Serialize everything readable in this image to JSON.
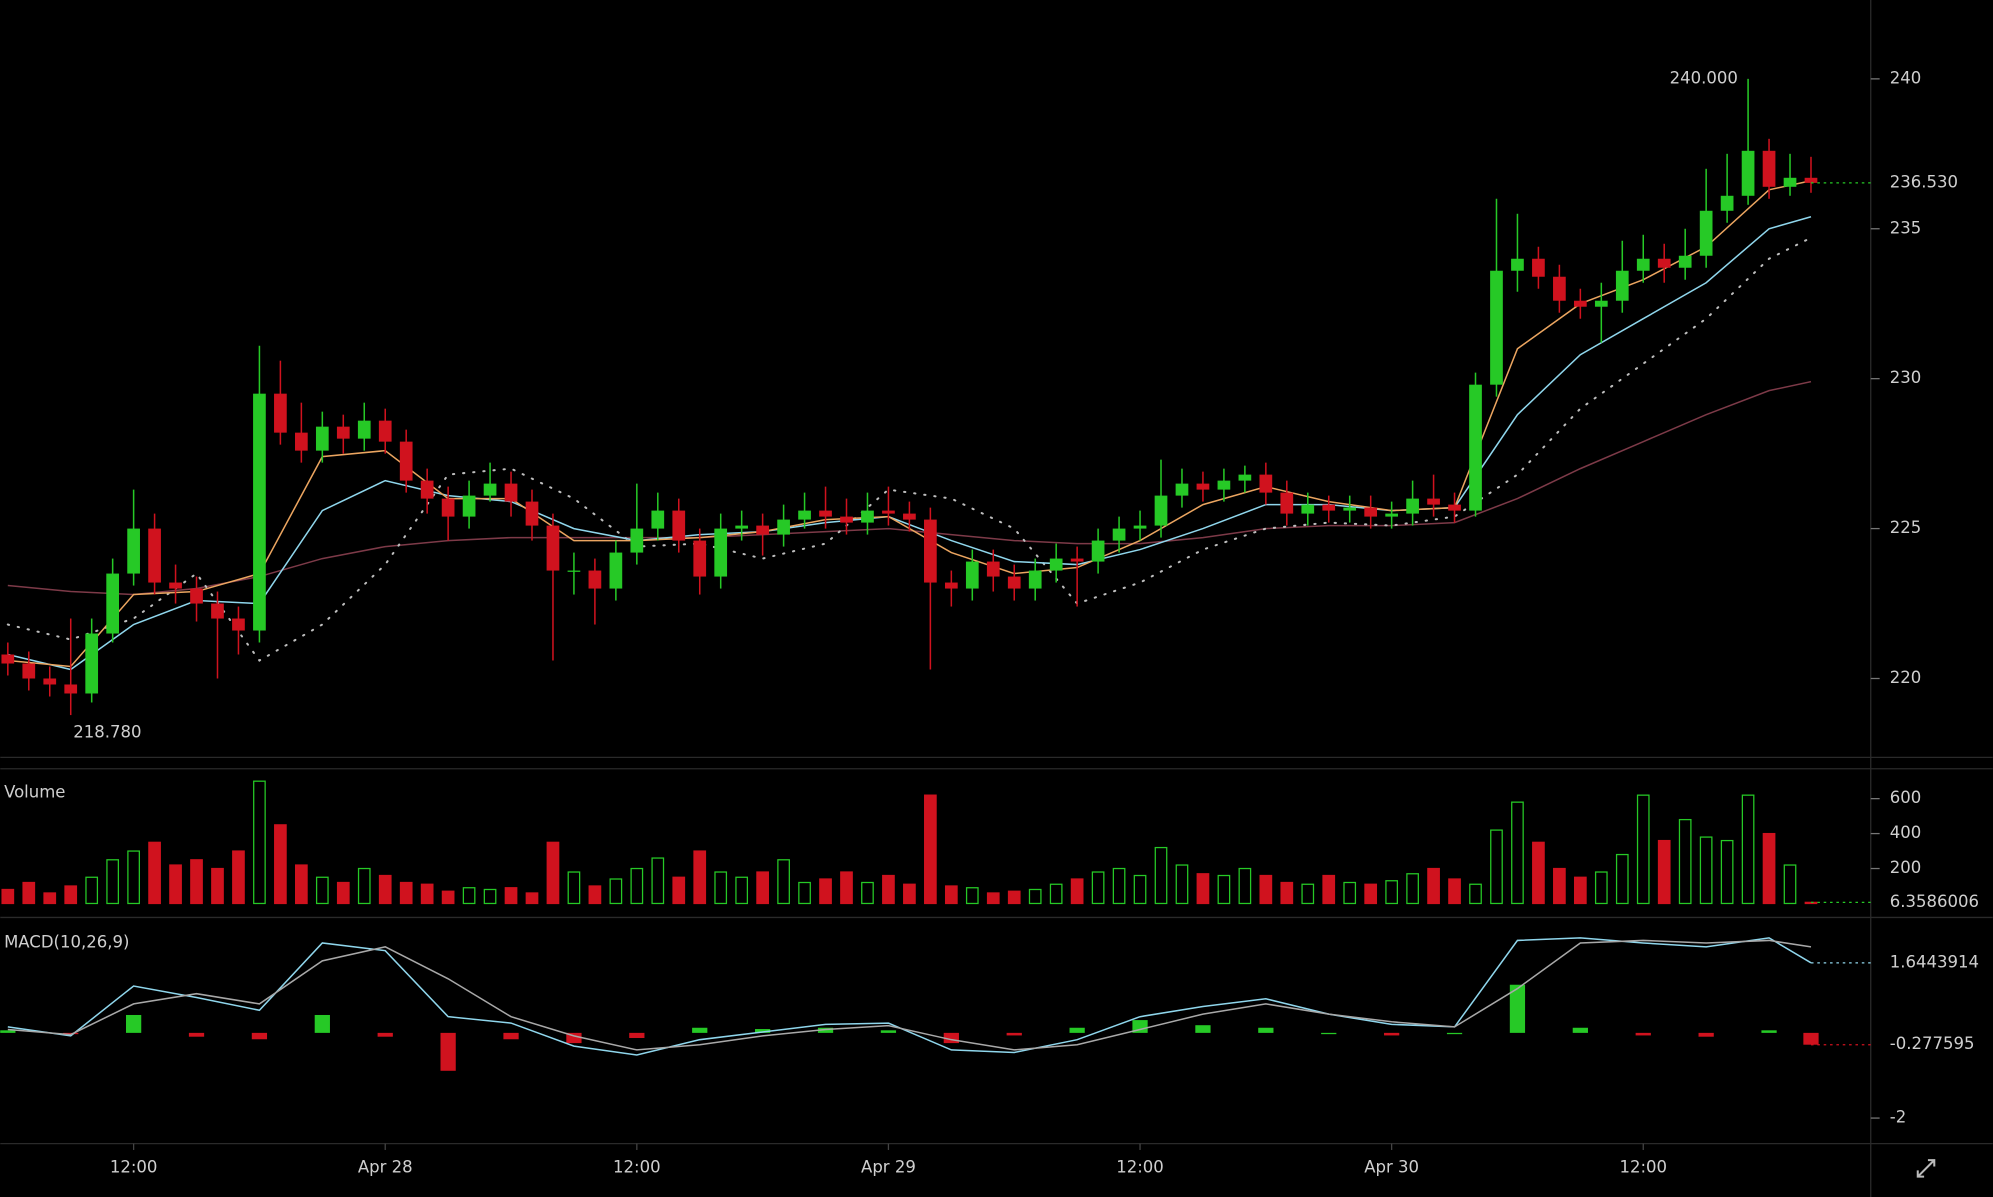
{
  "chart_data": [
    {
      "type": "candlestick",
      "x": [
        -18,
        -17,
        -16,
        -15,
        -14,
        -13,
        -12,
        -11,
        -10,
        -9,
        -8,
        -7,
        -6,
        -5,
        -4,
        -3,
        -2,
        -1,
        0,
        1,
        2,
        3,
        4,
        5,
        6,
        7,
        8,
        9,
        10,
        11,
        12,
        13,
        14,
        15,
        16,
        17,
        18,
        19,
        20,
        21,
        22,
        23,
        24,
        25,
        26,
        27,
        28,
        29,
        30,
        31,
        32,
        33,
        34,
        35,
        36,
        37,
        38,
        39,
        40,
        41,
        42,
        43,
        44,
        45,
        46,
        47,
        48,
        49,
        50,
        51,
        52,
        53,
        54,
        55,
        56,
        57,
        58,
        59,
        60,
        61,
        62,
        63,
        64,
        65,
        66,
        67,
        68
      ],
      "open": [
        220.8,
        220.5,
        220,
        219.8,
        219.5,
        221.5,
        223.5,
        225,
        223.2,
        223,
        222.5,
        222,
        221.6,
        229.5,
        228.2,
        227.6,
        228.4,
        228,
        228.6,
        227.9,
        226.6,
        226,
        225.4,
        226.1,
        226.5,
        225.9,
        225.1,
        223.6,
        223.6,
        223,
        224.2,
        225,
        225.6,
        224.6,
        223.4,
        225,
        225.1,
        224.8,
        225.3,
        225.6,
        225.4,
        225.2,
        225.6,
        225.5,
        225.3,
        223.2,
        223,
        223.9,
        223.4,
        223,
        223.6,
        224,
        223.9,
        224.6,
        225,
        225.1,
        226.1,
        226.5,
        226.3,
        226.6,
        226.8,
        226.2,
        225.5,
        225.8,
        225.6,
        225.7,
        225.4,
        225.5,
        226,
        225.8,
        225.6,
        229.8,
        233.6,
        234,
        233.4,
        232.6,
        232.4,
        232.6,
        233.6,
        234,
        233.7,
        234.1,
        235.6,
        236.1,
        237.6,
        236.4,
        236.7
      ],
      "high": [
        221.2,
        220.9,
        220.4,
        222,
        222,
        224,
        226.3,
        225.5,
        223.8,
        223.4,
        222.9,
        222.4,
        231.1,
        230.6,
        229.2,
        228.9,
        228.8,
        229.2,
        229,
        228.3,
        227,
        226.4,
        226.6,
        227.2,
        226.9,
        226.3,
        225.5,
        224.2,
        224,
        224.6,
        226.5,
        226.2,
        226,
        225,
        225.5,
        225.6,
        225.5,
        225.8,
        226.2,
        226.4,
        226,
        226.2,
        226.4,
        225.9,
        225.7,
        223.6,
        224.3,
        224.3,
        223.8,
        224,
        224.5,
        224.4,
        225,
        225.4,
        225.6,
        227.3,
        227,
        226.9,
        227,
        227.1,
        227.2,
        226.6,
        226.2,
        226.1,
        226.1,
        226.1,
        225.9,
        226.6,
        226.8,
        226.2,
        230.2,
        236,
        235.5,
        234.4,
        233.8,
        233,
        233.2,
        234.6,
        234.8,
        234.5,
        235,
        237,
        237.5,
        240,
        238,
        237.5,
        237.4
      ],
      "low": [
        220.1,
        219.6,
        219.4,
        218.78,
        219.2,
        221.2,
        223.1,
        222.8,
        222.5,
        221.9,
        220,
        220.8,
        221.2,
        227.8,
        227.2,
        227.2,
        227.5,
        227.6,
        227.5,
        226.2,
        225.5,
        224.6,
        225,
        225.9,
        225.4,
        224.6,
        220.6,
        222.8,
        221.8,
        222.6,
        223.8,
        224.6,
        224.2,
        222.8,
        223,
        224.6,
        224.1,
        224.4,
        225,
        225,
        224.8,
        224.8,
        225.1,
        224.9,
        220.3,
        222.4,
        222.6,
        222.9,
        222.6,
        222.6,
        223.2,
        222.4,
        223.5,
        224.2,
        224.6,
        224.7,
        225.7,
        225.9,
        225.9,
        226.2,
        225.8,
        225.1,
        225.1,
        225.2,
        225.2,
        225,
        225,
        225.1,
        225.4,
        225.2,
        225.4,
        229.4,
        232.9,
        233,
        232.2,
        232,
        231.2,
        232.2,
        233.2,
        233.2,
        233.3,
        233.7,
        235.2,
        235.8,
        236,
        236.1,
        236.2
      ],
      "close": [
        220.5,
        220,
        219.8,
        219.5,
        221.5,
        223.5,
        225,
        223.2,
        223,
        222.5,
        222,
        221.6,
        229.5,
        228.2,
        227.6,
        228.4,
        228,
        228.6,
        227.9,
        226.6,
        226,
        225.4,
        226.1,
        226.5,
        225.9,
        225.1,
        223.6,
        223.6,
        223,
        224.2,
        225,
        225.6,
        224.6,
        223.4,
        225,
        225.1,
        224.8,
        225.3,
        225.6,
        225.4,
        225.2,
        225.6,
        225.5,
        225.3,
        223.2,
        223,
        223.9,
        223.4,
        223,
        223.6,
        224,
        223.9,
        224.6,
        225,
        225.1,
        226.1,
        226.5,
        226.3,
        226.6,
        226.8,
        226.2,
        225.5,
        225.8,
        225.6,
        225.7,
        225.4,
        225.5,
        226,
        225.8,
        225.6,
        229.8,
        233.6,
        234,
        233.4,
        232.6,
        232.4,
        232.6,
        233.6,
        234,
        233.7,
        234.1,
        235.6,
        236.1,
        237.6,
        236.4,
        236.7,
        236.53
      ],
      "up_color": "#26c926",
      "down_color": "#d0121e",
      "high_label": "240.000",
      "low_label": "218.780",
      "last_label": "236.530",
      "xlim": [
        -18.36,
        70.85
      ],
      "xticks": [
        {
          "value": -12,
          "label": "12:00"
        },
        {
          "value": 0,
          "label": "Apr 28"
        },
        {
          "value": 12,
          "label": "12:00"
        },
        {
          "value": 24,
          "label": "Apr 29"
        },
        {
          "value": 36,
          "label": "12:00"
        },
        {
          "value": 48,
          "label": "Apr 30"
        },
        {
          "value": 60,
          "label": "12:00"
        }
      ],
      "ylim": [
        217.54,
        242.63
      ],
      "yticks": [
        220,
        225,
        230,
        235,
        240
      ],
      "lines_x": [
        -18,
        -15,
        -12,
        -9,
        -6,
        -3,
        0,
        3,
        6,
        9,
        12,
        15,
        18,
        21,
        24,
        27,
        30,
        33,
        36,
        39,
        42,
        45,
        48,
        51,
        54,
        57,
        60,
        63,
        66,
        68
      ],
      "lines": [
        {
          "color": "#7d3a48",
          "style": "solid",
          "values": [
            223.1,
            222.9,
            222.8,
            223,
            223.4,
            224,
            224.4,
            224.6,
            224.7,
            224.7,
            224.7,
            224.7,
            224.8,
            224.9,
            225,
            224.8,
            224.6,
            224.5,
            224.5,
            224.7,
            225,
            225.1,
            225.1,
            225.2,
            226,
            227,
            227.9,
            228.8,
            229.6,
            229.9
          ]
        },
        {
          "color": "#bdbdbd",
          "style": "dotted",
          "values": [
            221.8,
            221.3,
            222,
            223.5,
            220.6,
            221.8,
            223.8,
            226.8,
            227,
            226,
            224.4,
            224.5,
            224,
            224.5,
            226.3,
            226,
            225,
            222.5,
            223.2,
            224.3,
            225,
            225.2,
            225.1,
            225.4,
            226.8,
            229,
            230.5,
            232,
            234,
            234.7
          ]
        },
        {
          "color": "#8fd6ec",
          "style": "solid",
          "values": [
            220.8,
            220.3,
            221.8,
            222.6,
            222.5,
            225.6,
            226.6,
            226.1,
            225.9,
            225,
            224.6,
            224.8,
            224.9,
            225.2,
            225.4,
            224.6,
            223.9,
            223.8,
            224.3,
            225,
            225.8,
            225.8,
            225.6,
            225.7,
            228.8,
            230.8,
            232,
            233.2,
            235,
            235.4
          ]
        },
        {
          "color": "#eba560",
          "style": "solid",
          "values": [
            220.6,
            220.4,
            222.8,
            222.9,
            223.5,
            227.4,
            227.6,
            226,
            226,
            224.6,
            224.6,
            224.7,
            224.9,
            225.3,
            225.4,
            224.2,
            223.5,
            223.7,
            224.6,
            225.8,
            226.4,
            225.9,
            225.6,
            225.7,
            231,
            232.5,
            233.3,
            234.4,
            236.3,
            236.6
          ]
        }
      ]
    },
    {
      "type": "bar",
      "title": "Volume",
      "values": [
        80,
        120,
        60,
        100,
        150,
        250,
        300,
        350,
        220,
        250,
        200,
        300,
        700,
        450,
        220,
        150,
        120,
        200,
        160,
        120,
        110,
        70,
        90,
        80,
        90,
        60,
        350,
        180,
        100,
        140,
        200,
        260,
        150,
        300,
        180,
        150,
        180,
        250,
        120,
        140,
        180,
        120,
        160,
        110,
        620,
        100,
        90,
        60,
        70,
        80,
        110,
        140,
        180,
        200,
        160,
        320,
        220,
        170,
        160,
        200,
        160,
        120,
        110,
        160,
        120,
        110,
        130,
        170,
        200,
        140,
        110,
        420,
        580,
        350,
        200,
        150,
        180,
        280,
        620,
        360,
        480,
        380,
        360,
        620,
        400,
        220,
        6.3586006
      ],
      "ylim": [
        0,
        771
      ],
      "yticks": [
        200,
        400,
        600
      ]
    },
    {
      "type": "macd",
      "title": "MACD(10,26,9)",
      "x": [
        -18,
        -15,
        -12,
        -9,
        -6,
        -3,
        0,
        3,
        6,
        9,
        12,
        15,
        18,
        21,
        24,
        27,
        30,
        33,
        36,
        39,
        42,
        45,
        48,
        51,
        54,
        57,
        60,
        63,
        66,
        68
      ],
      "series": [
        {
          "color": "#8fd6ec",
          "values": [
            0.14,
            -0.07,
            1.1,
            0.83,
            0.53,
            2.11,
            1.93,
            0.38,
            0.23,
            -0.31,
            -0.52,
            -0.16,
            0.02,
            0.2,
            0.23,
            -0.4,
            -0.46,
            -0.16,
            0.38,
            0.62,
            0.8,
            0.44,
            0.2,
            0.14,
            2.17,
            2.23,
            2.11,
            2.02,
            2.23,
            1.6443914
          ]
        },
        {
          "color": "#a8a8a8",
          "values": [
            0.08,
            -0.04,
            0.68,
            0.92,
            0.68,
            1.69,
            2.02,
            1.27,
            0.38,
            -0.07,
            -0.4,
            -0.28,
            -0.07,
            0.08,
            0.17,
            -0.16,
            -0.4,
            -0.28,
            0.08,
            0.44,
            0.68,
            0.44,
            0.26,
            0.14,
            1.04,
            2.11,
            2.17,
            2.11,
            2.17,
            2.02
          ]
        }
      ],
      "histogram": [
        0.06,
        -0.03,
        0.42,
        -0.09,
        -0.15,
        0.42,
        -0.09,
        -0.89,
        -0.15,
        -0.24,
        -0.12,
        0.12,
        0.09,
        0.12,
        0.06,
        -0.24,
        -0.06,
        0.12,
        0.3,
        0.18,
        0.12,
        0,
        -0.06,
        0,
        1.13,
        0.12,
        -0.06,
        -0.09,
        0.06,
        -0.277595
      ],
      "ylim": [
        -2.6,
        2.65
      ],
      "yticks": [
        -2
      ]
    }
  ]
}
